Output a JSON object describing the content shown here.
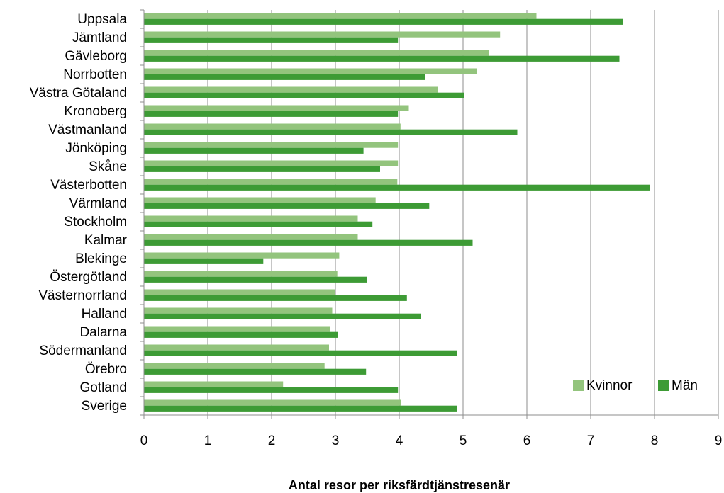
{
  "chart_data": {
    "type": "bar",
    "orientation": "horizontal",
    "categories": [
      "Uppsala",
      "Jämtland",
      "Gävleborg",
      "Norrbotten",
      "Västra Götaland",
      "Kronoberg",
      "Västmanland",
      "Jönköping",
      "Skåne",
      "Västerbotten",
      "Värmland",
      "Stockholm",
      "Kalmar",
      "Blekinge",
      "Östergötland",
      "Västernorrland",
      "Halland",
      "Dalarna",
      "Södermanland",
      "Örebro",
      "Gotland",
      "Sverige"
    ],
    "series": [
      {
        "name": "Kvinnor",
        "color": "#93c47d",
        "values": [
          6.15,
          5.58,
          5.4,
          5.22,
          4.6,
          4.15,
          4.02,
          3.98,
          3.98,
          3.97,
          3.63,
          3.35,
          3.35,
          3.06,
          3.03,
          3.0,
          2.95,
          2.92,
          2.9,
          2.83,
          2.18,
          4.03
        ]
      },
      {
        "name": "Män",
        "color": "#3d9b35",
        "values": [
          7.5,
          3.98,
          7.45,
          4.4,
          5.02,
          3.98,
          5.85,
          3.44,
          3.7,
          7.93,
          4.47,
          3.58,
          5.15,
          1.87,
          3.5,
          4.12,
          4.34,
          3.04,
          4.91,
          3.48,
          3.98,
          4.9
        ]
      }
    ],
    "xlim": [
      0,
      9
    ],
    "xticks": [
      "0",
      "1",
      "2",
      "3",
      "4",
      "5",
      "6",
      "7",
      "8",
      "9"
    ],
    "xlabel": "Antal resor per riksfärdtjänstresenär",
    "ylabel": "",
    "grid": true,
    "legend_position": "bottom-right"
  }
}
